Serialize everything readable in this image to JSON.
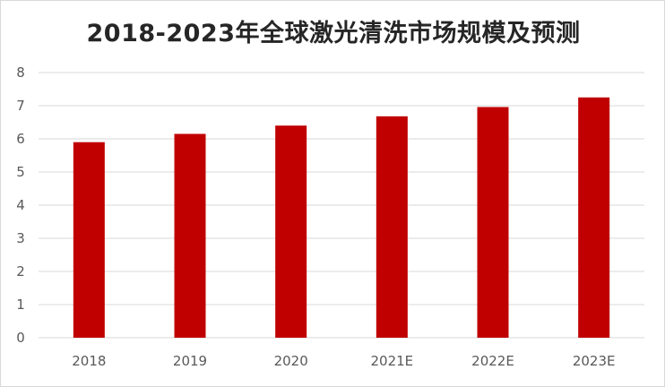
{
  "chart_data": {
    "type": "bar",
    "title": "2018-2023年全球激光清洗市场规模及预测",
    "xlabel": "",
    "ylabel": "",
    "categories": [
      "2018",
      "2019",
      "2020",
      "2021E",
      "2022E",
      "2023E"
    ],
    "values": [
      5.9,
      6.15,
      6.4,
      6.68,
      6.96,
      7.25
    ],
    "ylim": [
      0,
      8
    ],
    "yticks": [
      "0",
      "1",
      "2",
      "3",
      "4",
      "5",
      "6",
      "7",
      "8"
    ],
    "grid": true,
    "legend": "none",
    "bar_color": "#c00000",
    "grid_color": "#d9d9d9"
  }
}
